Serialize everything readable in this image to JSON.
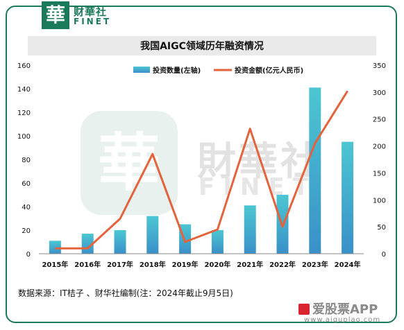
{
  "header": {
    "logo_char": "華",
    "brand_cn": "财華社",
    "brand_en": "FINET"
  },
  "watermark": {
    "seal_char": "華",
    "cn": "財華社",
    "en": "FINET"
  },
  "footer": {
    "source": "数据来源：IT桔子 、财华社编制(注：2024年截止9月5日)",
    "brand": "爱股票APP",
    "url": "www.aiguplao.com"
  },
  "colors": {
    "bar": "#4cc6d2",
    "bar_bottom": "#3a90c8",
    "line": "#e5623a",
    "frame": "#1a7a5a"
  },
  "chart_data": {
    "type": "bar",
    "title": "我国AIGC领域历年融资情况",
    "categories": [
      "2015年",
      "2016年",
      "2017年",
      "2018年",
      "2019年",
      "2020年",
      "2021年",
      "2022年",
      "2023年",
      "2024年"
    ],
    "series": [
      {
        "name": "投资数量(左轴)",
        "type": "bar",
        "axis": "left",
        "values": [
          11,
          17,
          20,
          32,
          25,
          20,
          41,
          50,
          141,
          95
        ]
      },
      {
        "name": "投资金额(亿元人民币)",
        "type": "line",
        "axis": "right",
        "values": [
          10,
          10,
          65,
          185,
          22,
          45,
          232,
          50,
          205,
          302
        ]
      }
    ],
    "ylim_left": [
      0,
      160
    ],
    "yticks_left": [
      0,
      20,
      40,
      60,
      80,
      100,
      120,
      140,
      160
    ],
    "ylim_right": [
      0,
      350
    ],
    "yticks_right": [
      0,
      50,
      100,
      150,
      200,
      250,
      300,
      350
    ],
    "legend": "top-right",
    "grid": false
  }
}
